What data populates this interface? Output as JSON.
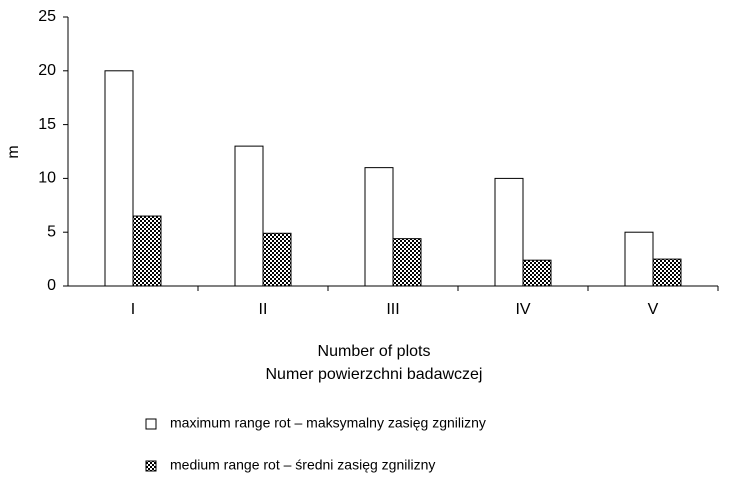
{
  "chart_data": {
    "type": "bar",
    "y_label": "m",
    "x_label": [
      "Number of plots",
      "Numer powierzchni badawczej"
    ],
    "categories": [
      "I",
      "II",
      "III",
      "IV",
      "V"
    ],
    "series": [
      {
        "name": "maximum range rot – maksymalny zasięg zgnilizny",
        "color": "#ffffff",
        "values": [
          20,
          13,
          11,
          10,
          5
        ]
      },
      {
        "name": "medium range rot  – średni zasięg zgnilizny",
        "color": "checkered",
        "values": [
          6.5,
          4.9,
          4.4,
          2.4,
          2.5
        ]
      }
    ],
    "ylim": [
      0,
      25
    ],
    "yticks": [
      0,
      5,
      10,
      15,
      20,
      25
    ]
  }
}
